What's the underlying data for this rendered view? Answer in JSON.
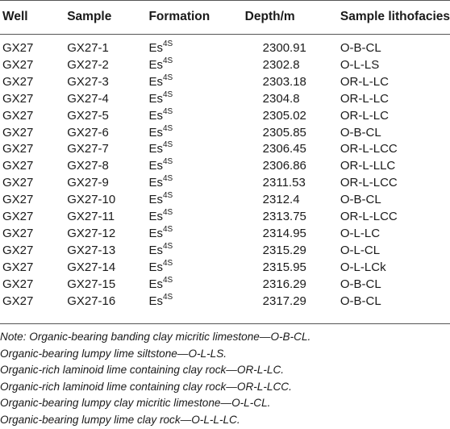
{
  "table": {
    "headers": [
      "Well",
      "Sample",
      "Formation",
      "Depth/m",
      "Sample lithofacies"
    ],
    "formation_base": "Es",
    "formation_sup": "4S",
    "rows": [
      {
        "well": "GX27",
        "sample": "GX27-1",
        "depth": "2300.91",
        "lith": "O-B-CL"
      },
      {
        "well": "GX27",
        "sample": "GX27-2",
        "depth": "2302.8",
        "lith": "O-L-LS"
      },
      {
        "well": "GX27",
        "sample": "GX27-3",
        "depth": "2303.18",
        "lith": "OR-L-LC"
      },
      {
        "well": "GX27",
        "sample": "GX27-4",
        "depth": "2304.8",
        "lith": "OR-L-LC"
      },
      {
        "well": "GX27",
        "sample": "GX27-5",
        "depth": "2305.02",
        "lith": "OR-L-LC"
      },
      {
        "well": "GX27",
        "sample": "GX27-6",
        "depth": "2305.85",
        "lith": "O-B-CL"
      },
      {
        "well": "GX27",
        "sample": "GX27-7",
        "depth": "2306.45",
        "lith": "OR-L-LCC"
      },
      {
        "well": "GX27",
        "sample": "GX27-8",
        "depth": "2306.86",
        "lith": "OR-L-LLC"
      },
      {
        "well": "GX27",
        "sample": "GX27-9",
        "depth": "2311.53",
        "lith": "OR-L-LCC"
      },
      {
        "well": "GX27",
        "sample": "GX27-10",
        "depth": "2312.4",
        "lith": "O-B-CL"
      },
      {
        "well": "GX27",
        "sample": "GX27-11",
        "depth": "2313.75",
        "lith": "OR-L-LCC"
      },
      {
        "well": "GX27",
        "sample": "GX27-12",
        "depth": "2314.95",
        "lith": "O-L-LC"
      },
      {
        "well": "GX27",
        "sample": "GX27-13",
        "depth": "2315.29",
        "lith": "O-L-CL"
      },
      {
        "well": "GX27",
        "sample": "GX27-14",
        "depth": "2315.95",
        "lith": "O-L-LCk"
      },
      {
        "well": "GX27",
        "sample": "GX27-15",
        "depth": "2316.29",
        "lith": "O-B-CL"
      },
      {
        "well": "GX27",
        "sample": "GX27-16",
        "depth": "2317.29",
        "lith": "O-B-CL"
      }
    ]
  },
  "notes": [
    "Note: Organic-bearing banding clay micritic limestone—O-B-CL.",
    "Organic-bearing lumpy lime siltstone—O-L-LS.",
    "Organic-rich laminoid lime containing clay rock—OR-L-LC.",
    "Organic-rich laminoid lime containing clay rock—OR-L-LCC.",
    "Organic-bearing lumpy clay micritic limestone—O-L-CL.",
    "Organic-bearing lumpy lime clay rock—O-L-L-LC."
  ]
}
